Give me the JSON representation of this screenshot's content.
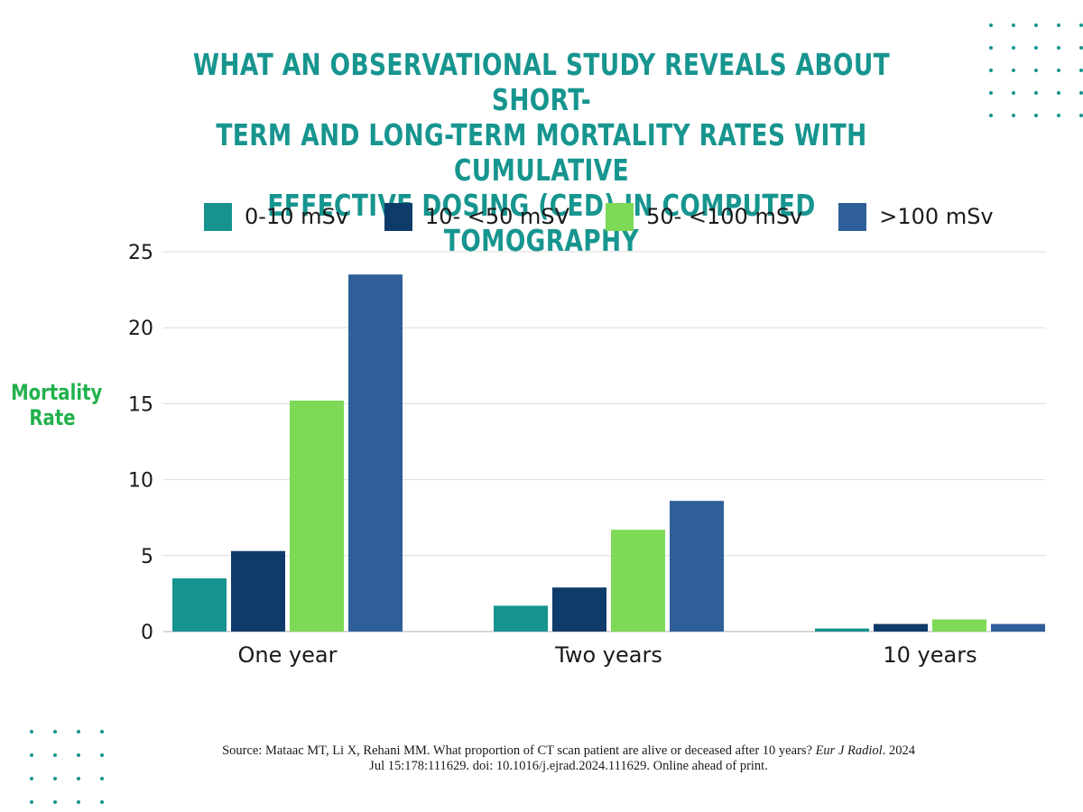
{
  "title_lines": [
    "WHAT AN OBSERVATIONAL STUDY REVEALS ABOUT SHORT-",
    "TERM AND LONG-TERM MORTALITY RATES WITH CUMULATIVE",
    "EFFECTIVE DOSING (CED) IN COMPUTED TOMOGRAPHY"
  ],
  "chart_data": {
    "type": "bar",
    "title": "What an observational study reveals about short-term and long-term mortality rates with cumulative effective dosing (CED) in computed tomography",
    "xlabel": "",
    "ylabel_lines": [
      "Mortality",
      "Rate"
    ],
    "categories": [
      "One year",
      "Two years",
      "10 years"
    ],
    "series": [
      {
        "name": "0-10 mSv",
        "color": "#16938f",
        "values": [
          3.5,
          1.7,
          0.2
        ]
      },
      {
        "name": "10- <50 mSV",
        "color": "#0f3b6b",
        "values": [
          5.3,
          2.9,
          0.5
        ]
      },
      {
        "name": "50- <100 mSv",
        "color": "#7ed957",
        "values": [
          15.2,
          6.7,
          0.8
        ]
      },
      {
        "name": ">100 mSv",
        "color": "#2f5f98",
        "values": [
          23.5,
          8.6,
          0.5
        ]
      }
    ],
    "ylim": [
      0,
      25
    ],
    "yticks": [
      0,
      5,
      10,
      15,
      20,
      25
    ],
    "grid": true,
    "legend_position": "top"
  },
  "source": {
    "line1_prefix": "Source: Mataac MT, Li X, Rehani MM. What proportion of CT scan patient are alive or deceased after 10 years? ",
    "journal": "Eur J Radiol",
    "line1_suffix": ". 2024",
    "line2": "Jul 15:178:111629. doi: 10.1016/j.ejrad.2024.111629. Online ahead of print."
  }
}
